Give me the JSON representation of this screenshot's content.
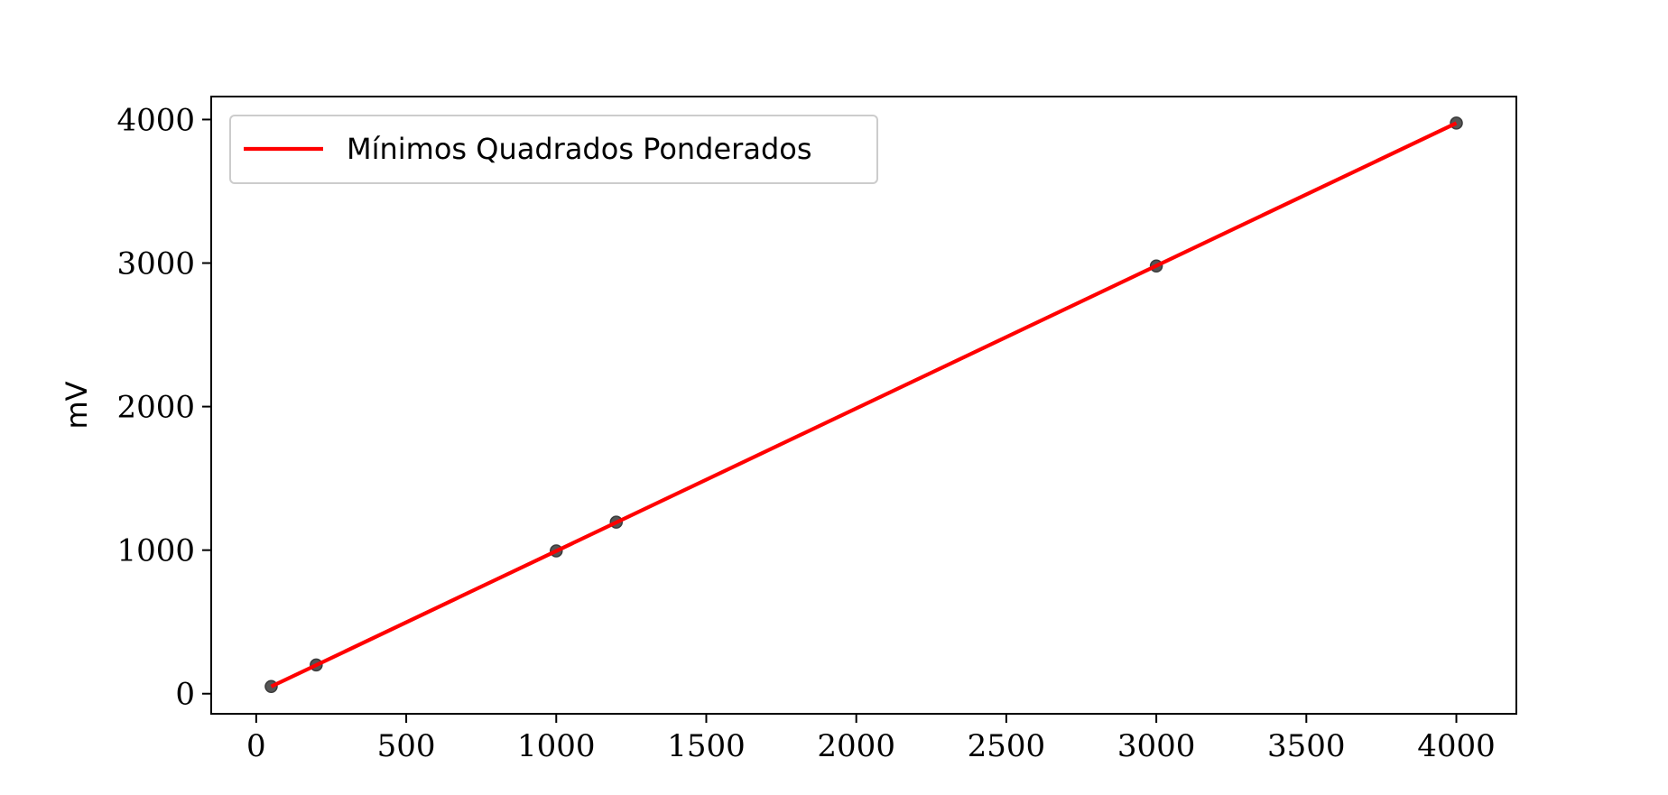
{
  "chart_data": {
    "type": "line",
    "title": "",
    "xlabel": "",
    "ylabel": "mV",
    "xlim": [
      -150,
      4200
    ],
    "ylim": [
      -140,
      4160
    ],
    "xticks": [
      0,
      500,
      1000,
      1500,
      2000,
      2500,
      3000,
      3500,
      4000
    ],
    "yticks": [
      0,
      1000,
      2000,
      3000,
      4000
    ],
    "grid": false,
    "legend_position": "top-left",
    "points": {
      "x": [
        50,
        200,
        1000,
        1200,
        3000,
        4000
      ],
      "y": [
        50,
        200,
        995,
        1195,
        2980,
        3975
      ],
      "color": "#555555"
    },
    "series": [
      {
        "name": "Mínimos Quadrados Ponderados",
        "type": "line",
        "color": "#ff0000",
        "x": [
          50,
          4000
        ],
        "y": [
          50,
          3975
        ]
      }
    ]
  }
}
